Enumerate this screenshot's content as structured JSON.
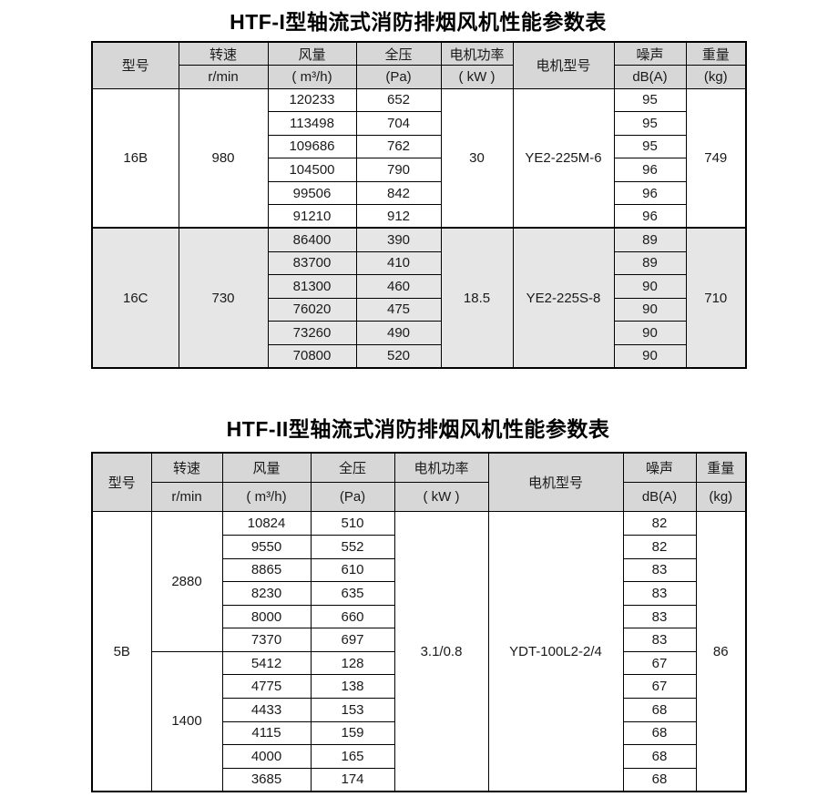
{
  "colors": {
    "header_bg": "#d7d7d7",
    "shaded_row_bg": "#e6e6e6",
    "border": "#000000",
    "text": "#1a1a1a",
    "page_bg": "#ffffff"
  },
  "tables": [
    {
      "title": "HTF-I型轴流式消防排烟风机性能参数表",
      "headers": {
        "model": "型号",
        "speed": "转速",
        "speed_unit": "r/min",
        "flow": "风量",
        "flow_unit": "( m³/h)",
        "pressure": "全压",
        "pressure_unit": "(Pa)",
        "power": "电机功率",
        "power_unit": "( kW )",
        "motor": "电机型号",
        "noise": "噪声",
        "noise_unit": "dB(A)",
        "weight": "重量",
        "weight_unit": "(kg)"
      },
      "blocks": [
        {
          "model": "16B",
          "power": "30",
          "motor": "YE2-225M-6",
          "weight": "749",
          "shaded": false,
          "speed_groups": [
            {
              "speed": "980",
              "rows": [
                {
                  "flow": "120233",
                  "pressure": "652",
                  "noise": "95"
                },
                {
                  "flow": "113498",
                  "pressure": "704",
                  "noise": "95"
                },
                {
                  "flow": "109686",
                  "pressure": "762",
                  "noise": "95"
                },
                {
                  "flow": "104500",
                  "pressure": "790",
                  "noise": "96"
                },
                {
                  "flow": "99506",
                  "pressure": "842",
                  "noise": "96"
                },
                {
                  "flow": "91210",
                  "pressure": "912",
                  "noise": "96"
                }
              ]
            }
          ]
        },
        {
          "model": "16C",
          "power": "18.5",
          "motor": "YE2-225S-8",
          "weight": "710",
          "shaded": true,
          "speed_groups": [
            {
              "speed": "730",
              "rows": [
                {
                  "flow": "86400",
                  "pressure": "390",
                  "noise": "89"
                },
                {
                  "flow": "83700",
                  "pressure": "410",
                  "noise": "89"
                },
                {
                  "flow": "81300",
                  "pressure": "460",
                  "noise": "90"
                },
                {
                  "flow": "76020",
                  "pressure": "475",
                  "noise": "90"
                },
                {
                  "flow": "73260",
                  "pressure": "490",
                  "noise": "90"
                },
                {
                  "flow": "70800",
                  "pressure": "520",
                  "noise": "90"
                }
              ]
            }
          ]
        }
      ]
    },
    {
      "title": "HTF-II型轴流式消防排烟风机性能参数表",
      "headers": {
        "model": "型号",
        "speed": "转速",
        "speed_unit": "r/min",
        "flow": "风量",
        "flow_unit": "( m³/h)",
        "pressure": "全压",
        "pressure_unit": "(Pa)",
        "power": "电机功率",
        "power_unit": "( kW )",
        "motor": "电机型号",
        "noise": "噪声",
        "noise_unit": "dB(A)",
        "weight": "重量",
        "weight_unit": "(kg)"
      },
      "blocks": [
        {
          "model": "5B",
          "power": "3.1/0.8",
          "motor": "YDT-100L2-2/4",
          "weight": "86",
          "shaded": false,
          "speed_groups": [
            {
              "speed": "2880",
              "rows": [
                {
                  "flow": "10824",
                  "pressure": "510",
                  "noise": "82"
                },
                {
                  "flow": "9550",
                  "pressure": "552",
                  "noise": "82"
                },
                {
                  "flow": "8865",
                  "pressure": "610",
                  "noise": "83"
                },
                {
                  "flow": "8230",
                  "pressure": "635",
                  "noise": "83"
                },
                {
                  "flow": "8000",
                  "pressure": "660",
                  "noise": "83"
                },
                {
                  "flow": "7370",
                  "pressure": "697",
                  "noise": "83"
                }
              ]
            },
            {
              "speed": "1400",
              "rows": [
                {
                  "flow": "5412",
                  "pressure": "128",
                  "noise": "67"
                },
                {
                  "flow": "4775",
                  "pressure": "138",
                  "noise": "67"
                },
                {
                  "flow": "4433",
                  "pressure": "153",
                  "noise": "68"
                },
                {
                  "flow": "4115",
                  "pressure": "159",
                  "noise": "68"
                },
                {
                  "flow": "4000",
                  "pressure": "165",
                  "noise": "68"
                },
                {
                  "flow": "3685",
                  "pressure": "174",
                  "noise": "68"
                }
              ]
            }
          ]
        }
      ]
    }
  ]
}
